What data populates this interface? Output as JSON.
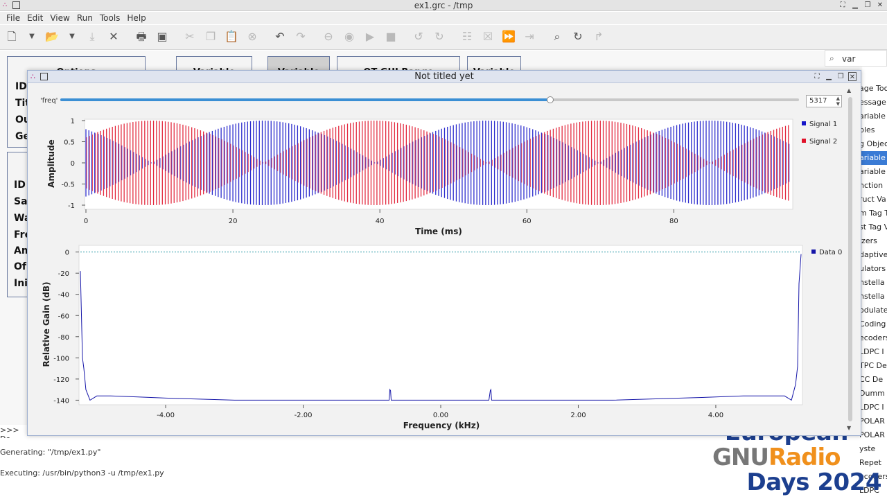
{
  "window": {
    "title": "ex1.grc - /tmp"
  },
  "menu": [
    "File",
    "Edit",
    "View",
    "Run",
    "Tools",
    "Help"
  ],
  "toolbar": {
    "icons": [
      "new-icon",
      "dropdown-icon",
      "open-icon",
      "dropdown-icon",
      "save-icon",
      "close-icon",
      "print-icon",
      "screenshot-icon",
      "cut-icon",
      "copy-icon",
      "paste-icon",
      "delete-icon",
      "undo-icon",
      "redo-icon",
      "disable-icon",
      "bypass-icon",
      "run-icon",
      "stop-icon",
      "rotate-ccw-icon",
      "rotate-cw-icon",
      "create-hier-icon",
      "open-hier-icon",
      "forward-icon",
      "back-icon",
      "find-icon",
      "reload-icon",
      "errors-icon"
    ]
  },
  "canvas": {
    "blocks": [
      {
        "title": "Options"
      },
      {
        "title": "Variable"
      },
      {
        "title": "Variable"
      },
      {
        "title": "QT GUI Range"
      },
      {
        "title": "Variable"
      }
    ],
    "side_labels_top": [
      "ID",
      "Tit",
      "Ou",
      "Ge"
    ],
    "side_labels_bottom": [
      "ID",
      "Sa",
      "Wa",
      "Fre",
      "Am",
      "Of",
      "Ini"
    ]
  },
  "search": {
    "value": "var"
  },
  "block_list": [
    "age Too",
    "essage",
    "ariable t",
    "bles",
    "g Objec",
    "ariable",
    "ariable C",
    "nction",
    "ruct Va",
    "m Tag T",
    "st Tag V",
    "izers",
    "daptive",
    "ulators",
    "nstella",
    "nstella",
    "odulate",
    "Coding",
    "ecoders",
    "LDPC I",
    "TPC De",
    "CC De",
    "Dumm",
    "LDPC I",
    "POLAR",
    "POLAR",
    "yste",
    "Repet",
    "ecoders",
    "LDPC"
  ],
  "block_list_selected": 5,
  "console": {
    "prompt": ">>> Do",
    "lines": [
      "Generating: \"/tmp/ex1.py\"",
      "Executing: /usr/bin/python3 -u /tmp/ex1.py"
    ]
  },
  "logo": {
    "line1": "European",
    "line2a": "GNU",
    "line2b": "Radio",
    "line3": "Days 2024"
  },
  "qt_window": {
    "title": "Not titled yet",
    "freq_label": "'freq'",
    "freq_value": "5317",
    "freq_fraction": 0.663
  },
  "colors": {
    "signal1": "#1515c8",
    "signal2": "#e0122a",
    "data0": "#1515a8",
    "accent": "#3b8fd4"
  },
  "chart_data": [
    {
      "type": "line",
      "title": "",
      "xlabel": "Time (ms)",
      "ylabel": "Amplitude",
      "xlim": [
        0,
        96
      ],
      "ylim": [
        -1,
        1
      ],
      "xticks": [
        0,
        20,
        40,
        60,
        80
      ],
      "yticks": [
        1,
        0.5,
        0,
        -0.5,
        -1
      ],
      "ytick_labels": [
        "1",
        "0.5",
        "0",
        "-0.5",
        "-1"
      ],
      "series": [
        {
          "name": "Signal 1",
          "envelope": "abs(cos(pi*t/30.4 + 0.65))",
          "carrier_ms": 0.4
        },
        {
          "name": "Signal 2",
          "envelope": "abs(sin(pi*t/30.4 + 0.65))",
          "carrier_ms": 0.4
        }
      ],
      "legend": "right",
      "grid": false
    },
    {
      "type": "line",
      "title": "",
      "xlabel": "Frequency (kHz)",
      "ylabel": "Relative Gain (dB)",
      "xlim": [
        -5.24,
        5.24
      ],
      "ylim": [
        -143,
        5
      ],
      "xticks": [
        -4,
        -2,
        0,
        2,
        4
      ],
      "xtick_labels": [
        "-4.00",
        "-2.00",
        "0.00",
        "2.00",
        "4.00"
      ],
      "yticks": [
        0,
        -20,
        -40,
        -60,
        -80,
        -100,
        -120,
        -140
      ],
      "series": [
        {
          "name": "Data 0",
          "x": [
            -5.24,
            -5.21,
            -5.19,
            -5.16,
            -5.1,
            -5.0,
            -4.8,
            -4.4,
            -4.0,
            -3.5,
            -3.0,
            -2.5,
            -2.0,
            -1.5,
            -0.75,
            -0.74,
            -0.73,
            -0.72,
            -0.7,
            0.0,
            0.7,
            0.72,
            0.73,
            0.74,
            0.75,
            1.5,
            2.0,
            2.5,
            3.0,
            3.5,
            4.0,
            4.4,
            4.8,
            5.0,
            5.1,
            5.16,
            5.19,
            5.21,
            5.24
          ],
          "y": [
            -18,
            -100,
            -110,
            -130,
            -140,
            -136,
            -136,
            -137,
            -138,
            -139,
            -140,
            -140,
            -140,
            -140,
            -140,
            -130,
            -131,
            -140,
            -140,
            -140,
            -140,
            -131,
            -130,
            -140,
            -140,
            -140,
            -140,
            -140,
            -139,
            -138,
            -137,
            -136,
            -136,
            -136,
            -140,
            -125,
            -108,
            -30,
            -2
          ]
        }
      ],
      "reference_line_db": 0,
      "legend": "right",
      "grid": false
    }
  ]
}
